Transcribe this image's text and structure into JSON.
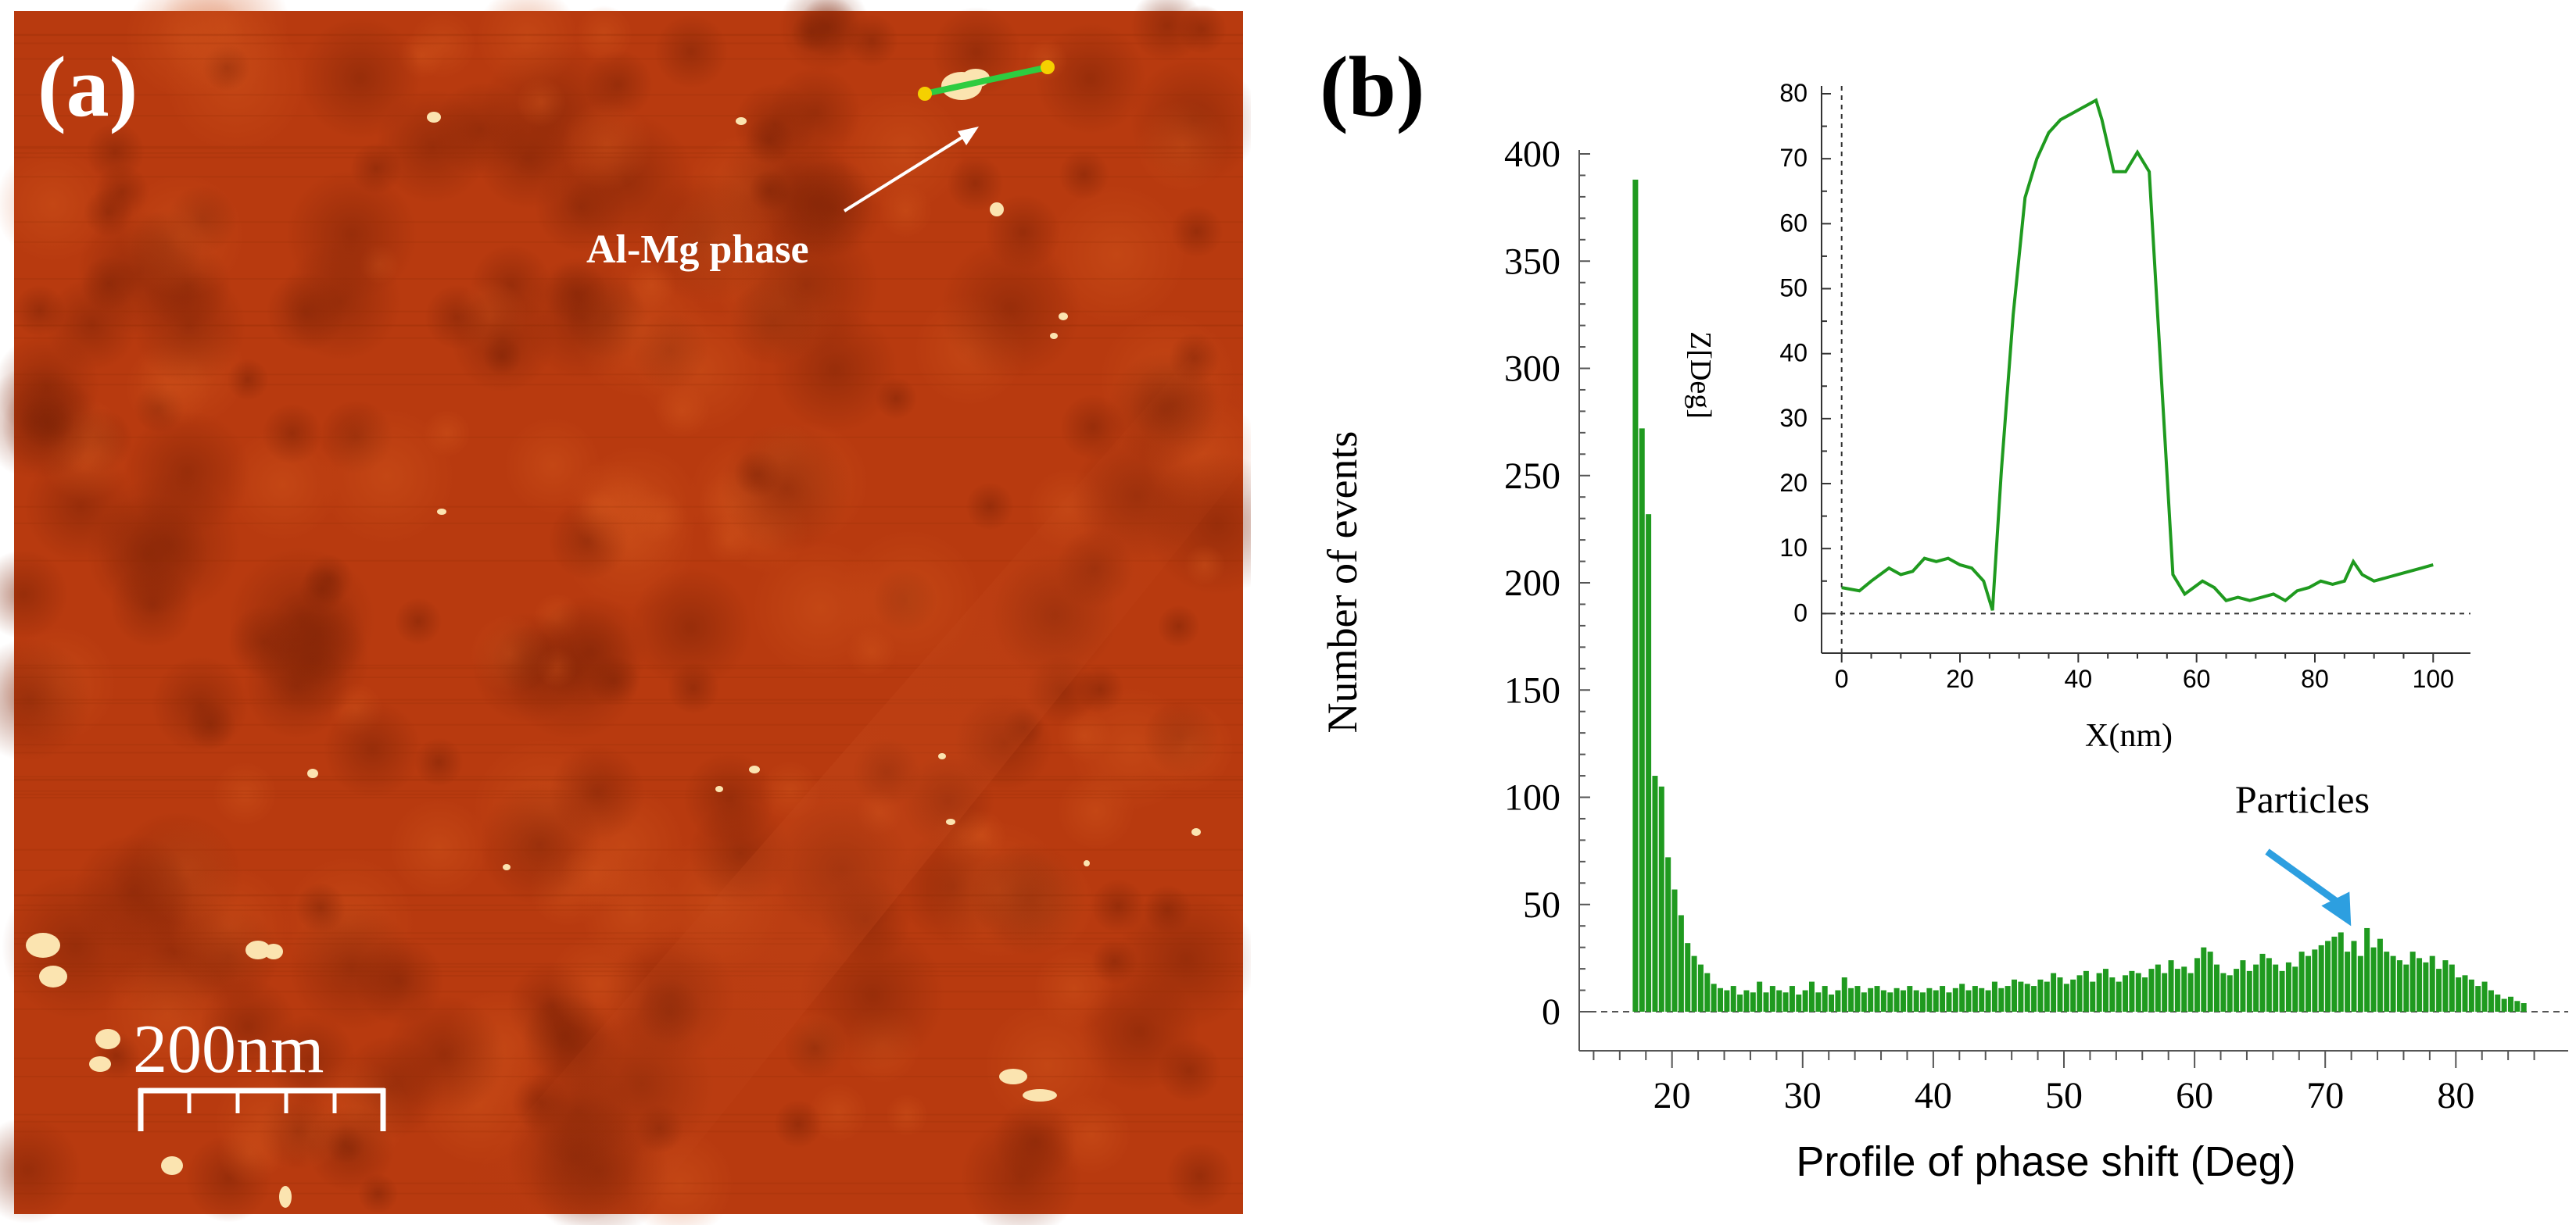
{
  "panel_a": {
    "label": "(a)",
    "annotation": "Al-Mg phase",
    "scale_bar_label": "200nm",
    "colors": {
      "surface": "#b83a0f",
      "surface_dark": "#8f2a08",
      "particle": "#fbe4b0",
      "profile_line": "#2ecc40",
      "marker": "#f5d000"
    }
  },
  "panel_b": {
    "label": "(b)",
    "annotation": "Particles",
    "colors": {
      "bars": "#1f9a1f",
      "arrow": "#2d9fe0",
      "inset_line": "#1f9a1f"
    }
  },
  "chart_data": [
    {
      "type": "bar",
      "title": "",
      "xlabel": "Profile of phase shift (Deg)",
      "ylabel": "Number of events",
      "xlim": [
        12,
        88
      ],
      "ylim": [
        0,
        400
      ],
      "xticks": [
        "20",
        "30",
        "40",
        "50",
        "60",
        "70",
        "80"
      ],
      "yticks": [
        "0",
        "50",
        "100",
        "150",
        "200",
        "250",
        "300",
        "350",
        "400"
      ],
      "annotation": {
        "text": "Particles",
        "x": 71.5,
        "y": 37
      },
      "x": [
        17.2,
        17.7,
        18.2,
        18.7,
        19.2,
        19.7,
        20.2,
        20.7,
        21.2,
        21.7,
        22.2,
        22.7,
        23.2,
        23.7,
        24.2,
        24.7,
        25.2,
        25.7,
        26.2,
        26.7,
        27.2,
        27.7,
        28.2,
        28.7,
        29.2,
        29.7,
        30.2,
        30.7,
        31.2,
        31.7,
        32.2,
        32.7,
        33.2,
        33.7,
        34.2,
        34.7,
        35.2,
        35.7,
        36.2,
        36.7,
        37.2,
        37.7,
        38.2,
        38.7,
        39.2,
        39.7,
        40.2,
        40.7,
        41.2,
        41.7,
        42.2,
        42.7,
        43.2,
        43.7,
        44.2,
        44.7,
        45.2,
        45.7,
        46.2,
        46.7,
        47.2,
        47.7,
        48.2,
        48.7,
        49.2,
        49.7,
        50.2,
        50.7,
        51.2,
        51.7,
        52.2,
        52.7,
        53.2,
        53.7,
        54.2,
        54.7,
        55.2,
        55.7,
        56.2,
        56.7,
        57.2,
        57.7,
        58.2,
        58.7,
        59.2,
        59.7,
        60.2,
        60.7,
        61.2,
        61.7,
        62.2,
        62.7,
        63.2,
        63.7,
        64.2,
        64.7,
        65.2,
        65.7,
        66.2,
        66.7,
        67.2,
        67.7,
        68.2,
        68.7,
        69.2,
        69.7,
        70.2,
        70.7,
        71.2,
        71.7,
        72.2,
        72.7,
        73.2,
        73.7,
        74.2,
        74.7,
        75.2,
        75.7,
        76.2,
        76.7,
        77.2,
        77.7,
        78.2,
        78.7,
        79.2,
        79.7,
        80.2,
        80.7,
        81.2,
        81.7,
        82.2,
        82.7,
        83.2,
        83.7,
        84.2,
        84.7,
        85.2
      ],
      "values": [
        388,
        272,
        232,
        110,
        105,
        72,
        57,
        45,
        32,
        26,
        22,
        18,
        13,
        11,
        10,
        12,
        8,
        10,
        9,
        14,
        9,
        12,
        10,
        9,
        12,
        8,
        10,
        14,
        9,
        12,
        8,
        10,
        16,
        11,
        12,
        9,
        11,
        12,
        10,
        9,
        11,
        10,
        12,
        10,
        9,
        11,
        10,
        12,
        9,
        11,
        13,
        10,
        12,
        11,
        10,
        14,
        11,
        12,
        15,
        14,
        13,
        12,
        15,
        14,
        18,
        16,
        13,
        15,
        17,
        19,
        14,
        18,
        20,
        16,
        14,
        17,
        19,
        18,
        16,
        20,
        22,
        18,
        24,
        20,
        21,
        18,
        25,
        30,
        28,
        22,
        18,
        17,
        20,
        24,
        19,
        22,
        27,
        25,
        22,
        19,
        23,
        21,
        28,
        26,
        29,
        31,
        33,
        35,
        37,
        28,
        33,
        26,
        39,
        30,
        34,
        28,
        26,
        24,
        22,
        28,
        25,
        23,
        26,
        20,
        24,
        22,
        16,
        17,
        15,
        12,
        14,
        10,
        8,
        6,
        7,
        5,
        4
      ]
    },
    {
      "type": "line",
      "title": "",
      "xlabel": "X(nm)",
      "ylabel": "Z[Deg]",
      "xlim": [
        -3,
        103
      ],
      "ylim": [
        -2,
        80
      ],
      "xticks": [
        "0",
        "20",
        "40",
        "60",
        "80",
        "100"
      ],
      "yticks": [
        "0",
        "10",
        "20",
        "30",
        "40",
        "50",
        "60",
        "70",
        "80"
      ],
      "series": [
        {
          "name": "profile",
          "x": [
            0,
            3,
            5,
            8,
            10,
            12,
            14,
            16,
            18,
            20,
            22,
            24,
            25.5,
            27,
            29,
            31,
            33,
            35,
            37,
            39,
            41,
            43,
            44,
            46,
            48,
            50,
            52,
            54,
            56,
            58,
            59.5,
            61,
            63,
            65,
            67,
            69,
            71,
            73,
            75,
            77,
            79,
            81,
            83,
            85,
            86.5,
            88,
            90,
            92,
            94,
            96,
            98,
            100
          ],
          "y": [
            4,
            3.5,
            5,
            7,
            6,
            6.5,
            8.5,
            8,
            8.5,
            7.5,
            7,
            5,
            0.5,
            22,
            46,
            64,
            70,
            74,
            76,
            77,
            78,
            79,
            76,
            68,
            68,
            71,
            68,
            37,
            6,
            3,
            4,
            5,
            4,
            2,
            2.5,
            2,
            2.5,
            3,
            2,
            3.5,
            4,
            5,
            4.5,
            5,
            8,
            6,
            5,
            5.5,
            6,
            6.5,
            7,
            7.5
          ]
        }
      ]
    }
  ]
}
